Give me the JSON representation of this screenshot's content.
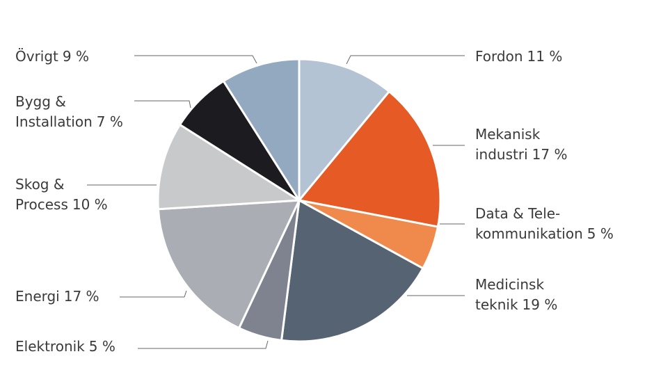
{
  "chart_data": {
    "type": "pie",
    "categories": [
      [
        "Fordon"
      ],
      [
        "Mekanisk",
        "industri"
      ],
      [
        "Data & Tele-",
        "kommunikation"
      ],
      [
        "Medicinsk",
        "teknik"
      ],
      [
        "Elektronik"
      ],
      [
        "Energi"
      ],
      [
        "Skog &",
        "Process"
      ],
      [
        "Bygg &",
        "Installation"
      ],
      [
        "Övrigt"
      ]
    ],
    "values": [
      11,
      17,
      5,
      19,
      5,
      17,
      10,
      7,
      9
    ],
    "value_labels": [
      "11 %",
      "17 %",
      "5 %",
      "19 %",
      "5 %",
      "17 %",
      "10 %",
      "7 %",
      "9 %"
    ],
    "colors": [
      "#b3c3d3",
      "#e55a25",
      "#ef8a4c",
      "#566373",
      "#7e838f",
      "#abadb5",
      "#c8c9cb",
      "#1c1b1f",
      "#93a9c0"
    ]
  }
}
